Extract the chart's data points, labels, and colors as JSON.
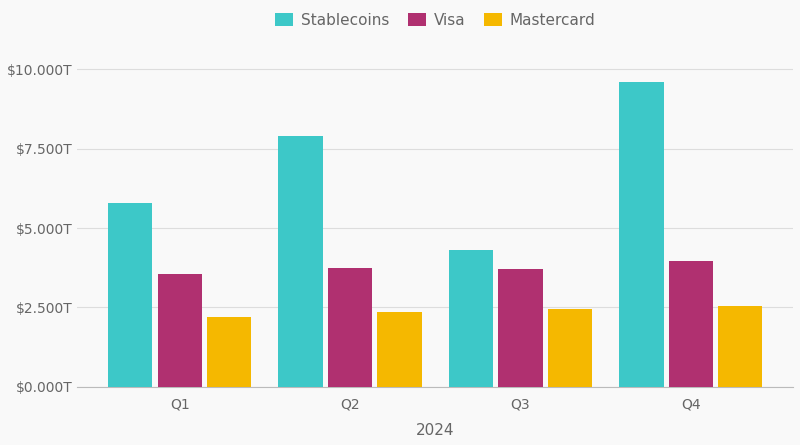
{
  "categories": [
    "Q1",
    "Q2",
    "Q3",
    "Q4"
  ],
  "stablecoins": [
    5.8,
    7.9,
    4.3,
    9.6
  ],
  "visa": [
    3.55,
    3.75,
    3.7,
    3.95
  ],
  "mastercard": [
    2.2,
    2.35,
    2.45,
    2.55
  ],
  "colors": {
    "stablecoins": "#3DC8C8",
    "visa": "#B03070",
    "mastercard": "#F5B800"
  },
  "legend_labels": [
    "Stablecoins",
    "Visa",
    "Mastercard"
  ],
  "xlabel": "2024",
  "yticks": [
    0.0,
    2.5,
    5.0,
    7.5,
    10.0
  ],
  "ytick_labels": [
    "$0.000T",
    "$2.500T",
    "$5.000T",
    "$7.500T",
    "$10.000T"
  ],
  "ylim": [
    0,
    10.8
  ],
  "background_color": "#f9f9f9",
  "grid_color": "#dddddd",
  "bar_width": 0.26,
  "bar_gap": 0.005,
  "xlabel_fontsize": 11,
  "tick_fontsize": 10,
  "legend_fontsize": 11,
  "text_color": "#666666"
}
